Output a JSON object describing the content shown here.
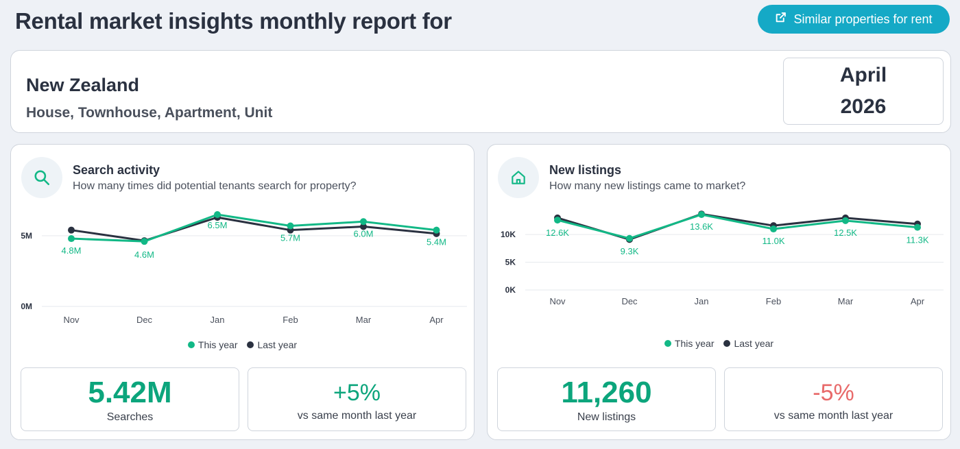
{
  "page": {
    "title": "Rental market insights monthly report for",
    "similar_button_label": "Similar properties for rent"
  },
  "location": {
    "name": "New Zealand",
    "property_types": "House, Townhouse, Apartment, Unit",
    "month": "April",
    "year": "2026"
  },
  "colors": {
    "this_year": "#12b886",
    "last_year": "#2a3140",
    "positive": "#0ca57c",
    "negative": "#e86a6a",
    "accent": "#15a9c6"
  },
  "legend": {
    "this_year": "This year",
    "last_year": "Last year"
  },
  "search": {
    "title": "Search activity",
    "subtitle": "How many times did potential tenants search for property?",
    "icon": "search-icon",
    "stat_value": "5.42M",
    "stat_label": "Searches",
    "change_value": "+5%",
    "change_label": "vs same month last year"
  },
  "listings": {
    "title": "New listings",
    "subtitle": "How many new listings came to market?",
    "icon": "home-icon",
    "stat_value": "11,260",
    "stat_label": "New listings",
    "change_value": "-5%",
    "change_label": "vs same month last year"
  },
  "chart_data": [
    {
      "type": "line",
      "categories": [
        "Nov",
        "Dec",
        "Jan",
        "Feb",
        "Mar",
        "Apr"
      ],
      "ylim": [
        0,
        6.5
      ],
      "y_ticks": [
        0,
        5
      ],
      "y_tick_labels": [
        "0M",
        "5M"
      ],
      "series": [
        {
          "name": "This year",
          "values": [
            4.8,
            4.6,
            6.5,
            5.7,
            6.0,
            5.4
          ],
          "labels": [
            "4.8M",
            "4.6M",
            "6.5M",
            "5.7M",
            "6.0M",
            "5.4M"
          ]
        },
        {
          "name": "Last year",
          "values": [
            5.4,
            4.65,
            6.3,
            5.4,
            5.65,
            5.15
          ]
        }
      ]
    },
    {
      "type": "line",
      "categories": [
        "Nov",
        "Dec",
        "Jan",
        "Feb",
        "Mar",
        "Apr"
      ],
      "ylim": [
        0,
        13.6
      ],
      "y_ticks": [
        0,
        5,
        10
      ],
      "y_tick_labels": [
        "0K",
        "5K",
        "10K"
      ],
      "series": [
        {
          "name": "This year",
          "values": [
            12.6,
            9.3,
            13.6,
            11.0,
            12.5,
            11.3
          ],
          "labels": [
            "12.6K",
            "9.3K",
            "13.6K",
            "11.0K",
            "12.5K",
            "11.3K"
          ]
        },
        {
          "name": "Last year",
          "values": [
            13.0,
            9.1,
            13.7,
            11.6,
            13.0,
            11.9
          ]
        }
      ]
    }
  ]
}
